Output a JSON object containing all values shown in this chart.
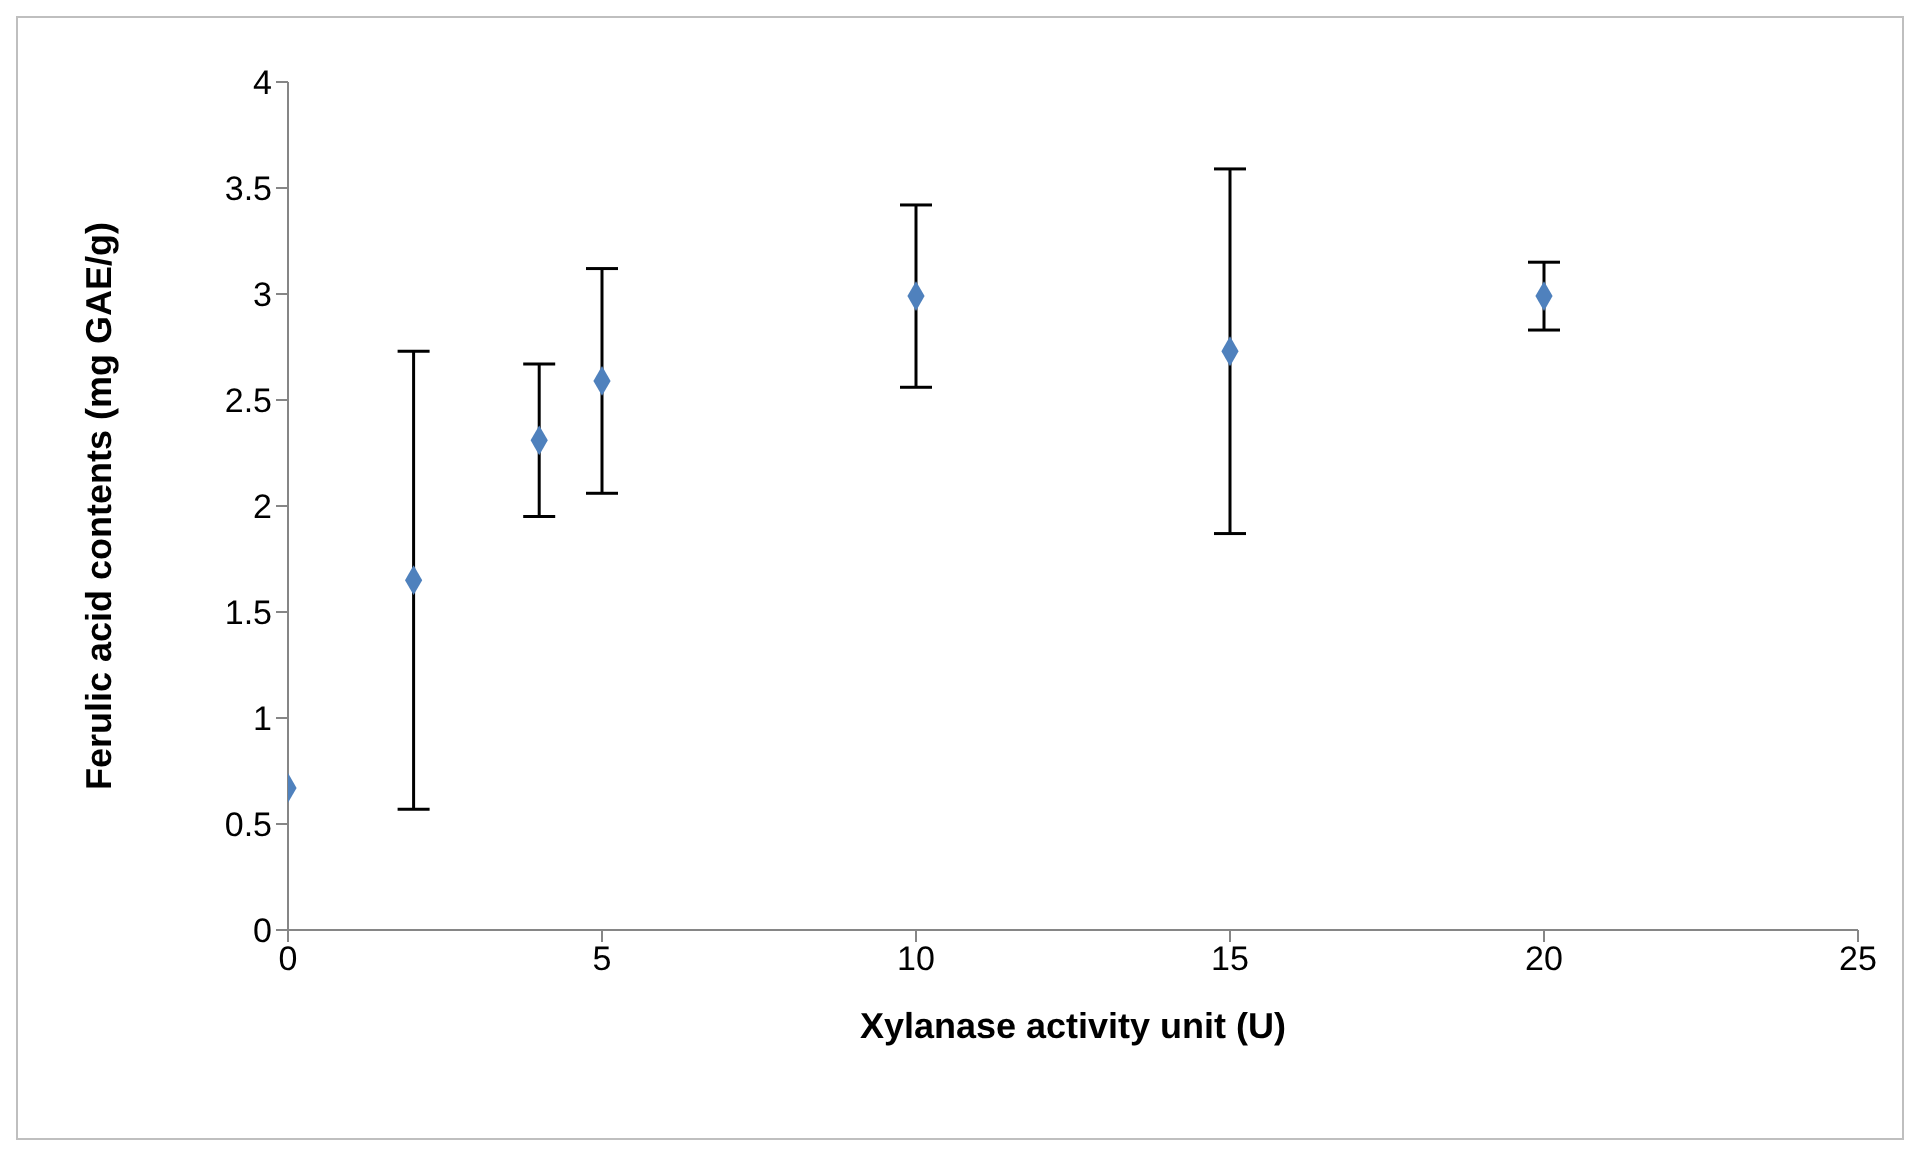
{
  "chart_data": {
    "type": "scatter",
    "xlabel": "Xylanase activity unit (U)",
    "ylabel": "Ferulic acid contents (mg GAE/g)",
    "x": [
      0,
      2,
      4,
      5,
      10,
      15,
      20
    ],
    "series": [
      {
        "color": "#4f81bd",
        "values": [
          0.67,
          1.65,
          2.31,
          2.59,
          2.99,
          2.73,
          2.99
        ],
        "errors": [
          null,
          1.08,
          0.36,
          0.53,
          0.43,
          0.86,
          0.16
        ]
      }
    ],
    "xlim": [
      0,
      25
    ],
    "xticks": [
      0,
      5,
      10,
      15,
      20,
      25
    ],
    "ylim": [
      0,
      4
    ],
    "yticks": [
      0,
      0.5,
      1,
      1.5,
      2,
      2.5,
      3,
      3.5,
      4
    ],
    "marker": "diamond",
    "grid": false
  }
}
